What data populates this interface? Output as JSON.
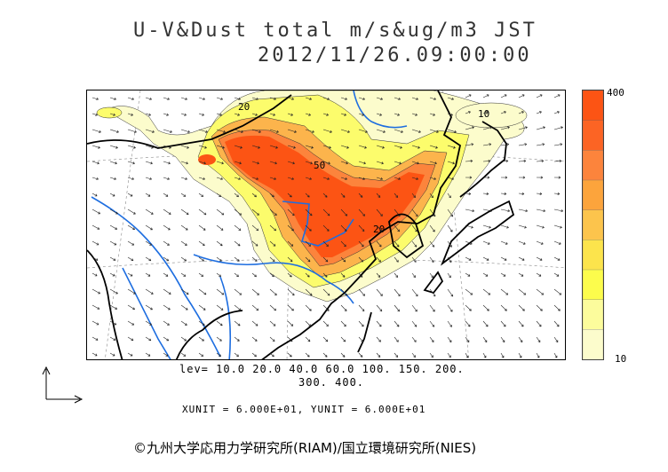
{
  "title": {
    "line1": "U-V&Dust total m/s&ug/m3 JST",
    "line2": "2012/11/26.09:00:00"
  },
  "colorbar": {
    "max_label": "400",
    "min_label": "10",
    "colors": [
      "#fcfccc",
      "#fcfc9c",
      "#fcfc4c",
      "#fce44c",
      "#fcc44c",
      "#fca43c",
      "#fc843c",
      "#fc6424",
      "#fc5414"
    ]
  },
  "levels": {
    "line1": "lev= 10.0 20.0 40.0 60.0 100. 150. 200.",
    "line2": "300. 400."
  },
  "units": {
    "text": "XUNIT = 6.000E+01, YUNIT = 6.000E+01"
  },
  "contour_labels": [
    "20",
    "50",
    "10",
    "20"
  ],
  "copyright": "©九州大学応用力学研究所(RIAM)/国立環境研究所(NIES)"
}
